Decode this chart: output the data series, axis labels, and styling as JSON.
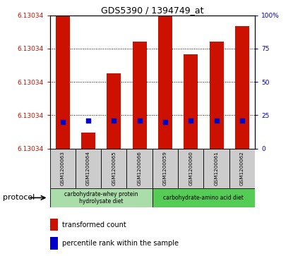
{
  "title": "GDS5390 / 1394749_at",
  "samples": [
    "GSM1200063",
    "GSM1200064",
    "GSM1200065",
    "GSM1200066",
    "GSM1200059",
    "GSM1200060",
    "GSM1200061",
    "GSM1200062"
  ],
  "bar_heights": [
    6.13034,
    6.093,
    6.112,
    6.122,
    6.13034,
    6.118,
    6.122,
    6.127
  ],
  "percentile_ranks": [
    20,
    21,
    21,
    21,
    20,
    21,
    21,
    21
  ],
  "ymin": 6.088,
  "ymax": 6.13034,
  "bar_color": "#cc1100",
  "dot_color": "#0000cc",
  "protocol_groups": [
    {
      "label": "carbohydrate-whey protein\nhydrolysate diet",
      "start": 0,
      "end": 4,
      "color": "#aaddaa"
    },
    {
      "label": "carbohydrate-amino acid diet",
      "start": 4,
      "end": 8,
      "color": "#55cc55"
    }
  ],
  "legend_red_label": "transformed count",
  "legend_blue_label": "percentile rank within the sample",
  "protocol_label": "protocol"
}
